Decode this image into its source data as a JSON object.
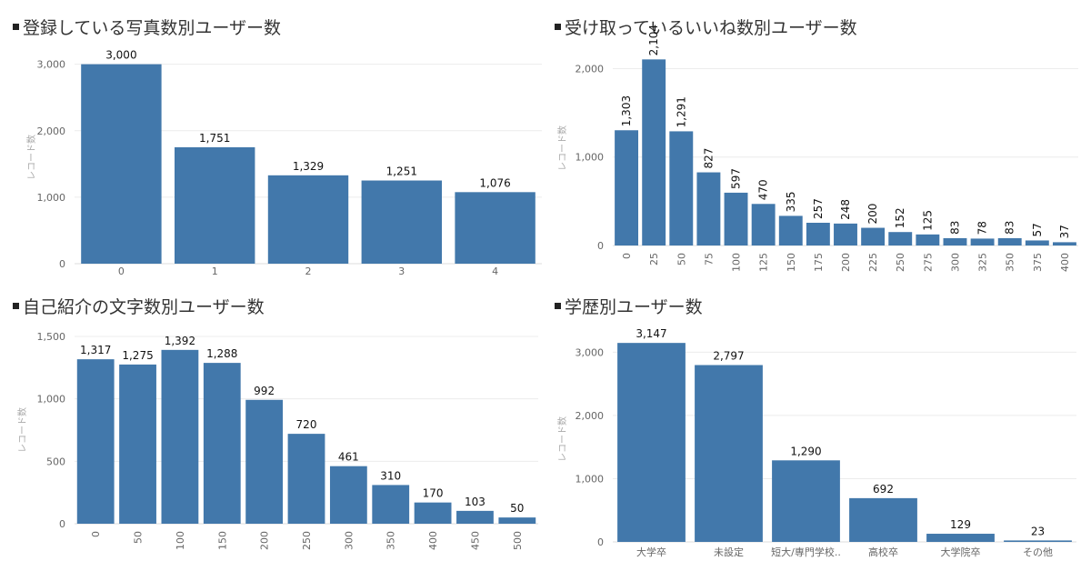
{
  "panels": [
    {
      "title": "登録している写真数別ユーザー数",
      "chart_data": {
        "type": "bar",
        "ylabel": "レコード数",
        "ylim": [
          0,
          3200
        ],
        "yticks": [
          0,
          1000,
          2000,
          3000
        ],
        "ytick_labels": [
          "0",
          "1,000",
          "2,000",
          "3,000"
        ],
        "categories": [
          "0",
          "1",
          "2",
          "3",
          "4"
        ],
        "values": [
          3000,
          1751,
          1329,
          1251,
          1076
        ],
        "labels": [
          "3,000",
          "1,751",
          "1,329",
          "1,251",
          "1,076"
        ],
        "rotate_labels": false,
        "rotate_ticks": false,
        "bar_color": "#4278ab"
      }
    },
    {
      "title": "受け取っているいいね数別ユーザー数",
      "chart_data": {
        "type": "bar",
        "ylabel": "レコード数",
        "ylim": [
          0,
          2200
        ],
        "yticks": [
          0,
          1000,
          2000
        ],
        "ytick_labels": [
          "0",
          "1,000",
          "2,000"
        ],
        "categories": [
          "0",
          "25",
          "50",
          "75",
          "100",
          "125",
          "150",
          "175",
          "200",
          "225",
          "250",
          "275",
          "300",
          "325",
          "350",
          "375",
          "400"
        ],
        "values": [
          1303,
          2104,
          1291,
          827,
          597,
          470,
          335,
          257,
          248,
          200,
          152,
          125,
          83,
          78,
          83,
          57,
          37
        ],
        "labels": [
          "1,303",
          "2,104",
          "1,291",
          "827",
          "597",
          "470",
          "335",
          "257",
          "248",
          "200",
          "152",
          "125",
          "83",
          "78",
          "83",
          "57",
          "37"
        ],
        "rotate_labels": true,
        "rotate_ticks": true,
        "bar_color": "#4278ab"
      }
    },
    {
      "title": "自己紹介の文字数別ユーザー数",
      "chart_data": {
        "type": "bar",
        "ylabel": "レコード数",
        "ylim": [
          0,
          1500
        ],
        "yticks": [
          0,
          500,
          1000,
          1500
        ],
        "ytick_labels": [
          "0",
          "500",
          "1,000",
          "1,500"
        ],
        "categories": [
          "0",
          "50",
          "100",
          "150",
          "200",
          "250",
          "300",
          "350",
          "400",
          "450",
          "500"
        ],
        "values": [
          1317,
          1275,
          1392,
          1288,
          992,
          720,
          461,
          310,
          170,
          103,
          50
        ],
        "labels": [
          "1,317",
          "1,275",
          "1,392",
          "1,288",
          "992",
          "720",
          "461",
          "310",
          "170",
          "103",
          "50"
        ],
        "rotate_labels": false,
        "rotate_ticks": true,
        "bar_color": "#4278ab"
      }
    },
    {
      "title": "学歴別ユーザー数",
      "chart_data": {
        "type": "bar",
        "ylabel": "レコード数",
        "ylim": [
          0,
          3250
        ],
        "yticks": [
          0,
          1000,
          2000,
          3000
        ],
        "ytick_labels": [
          "0",
          "1,000",
          "2,000",
          "3,000"
        ],
        "categories": [
          "大学卒",
          "未設定",
          "短大/専門学校..",
          "高校卒",
          "大学院卒",
          "その他"
        ],
        "values": [
          3147,
          2797,
          1290,
          692,
          129,
          23
        ],
        "labels": [
          "3,147",
          "2,797",
          "1,290",
          "692",
          "129",
          "23"
        ],
        "rotate_labels": false,
        "rotate_ticks": false,
        "bar_color": "#4278ab"
      }
    }
  ]
}
